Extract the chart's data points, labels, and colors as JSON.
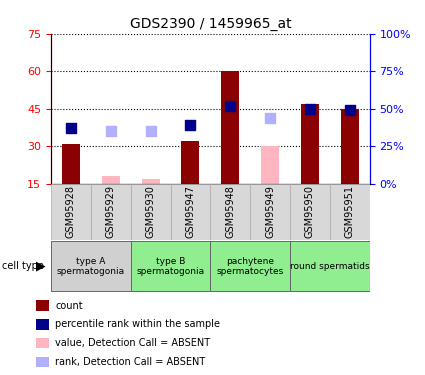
{
  "title": "GDS2390 / 1459965_at",
  "samples": [
    "GSM95928",
    "GSM95929",
    "GSM95930",
    "GSM95947",
    "GSM95948",
    "GSM95949",
    "GSM95950",
    "GSM95951"
  ],
  "count_values": [
    31,
    null,
    null,
    32,
    60,
    null,
    47,
    45
  ],
  "count_absent": [
    null,
    18,
    17,
    null,
    null,
    30,
    null,
    null
  ],
  "rank_values": [
    37,
    null,
    null,
    39,
    52,
    null,
    50,
    49
  ],
  "rank_absent": [
    null,
    35,
    35,
    null,
    null,
    44,
    null,
    null
  ],
  "ylim_left": [
    15,
    75
  ],
  "ylim_right": [
    0,
    100
  ],
  "yticks_left": [
    15,
    30,
    45,
    60,
    75
  ],
  "ytick_labels_left": [
    "15",
    "30",
    "45",
    "60",
    "75"
  ],
  "yticks_right_pct": [
    0,
    25,
    50,
    75,
    100
  ],
  "ytick_labels_right": [
    "0%",
    "25%",
    "50%",
    "75%",
    "100%"
  ],
  "cell_types": [
    {
      "label": "type A\nspermatogonia",
      "start": 0,
      "end": 2,
      "color": "#d0d0d0"
    },
    {
      "label": "type B\nspermatogonia",
      "start": 2,
      "end": 4,
      "color": "#90ee90"
    },
    {
      "label": "pachytene\nspermatocytes",
      "start": 4,
      "end": 6,
      "color": "#90ee90"
    },
    {
      "label": "round spermatids",
      "start": 6,
      "end": 8,
      "color": "#90ee90"
    }
  ],
  "bar_color_present": "#8b0000",
  "bar_color_absent": "#ffb6c1",
  "rank_color_present": "#00008b",
  "rank_color_absent": "#b0b0ff",
  "bar_width": 0.45,
  "rank_marker_size": 50,
  "grid_color": "black",
  "grid_style": "dotted"
}
